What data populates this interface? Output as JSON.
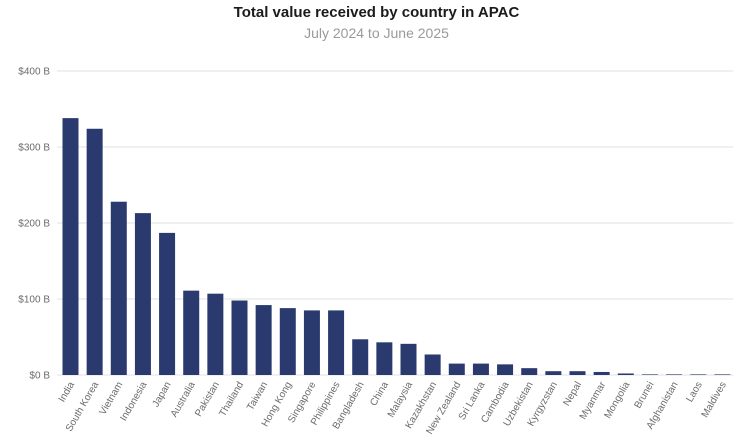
{
  "chart_data": {
    "type": "bar",
    "title": "Total value received by country in APAC",
    "subtitle": "July 2024 to June 2025",
    "xlabel": "",
    "ylabel": "",
    "ylim": [
      0,
      400
    ],
    "yticks": [
      0,
      100,
      200,
      300,
      400
    ],
    "ytick_labels": [
      "$0 B",
      "$100 B",
      "$200 B",
      "$300 B",
      "$400 B"
    ],
    "grid": true,
    "bar_color": "#2b3a6e",
    "grid_color": "#e2e2e2",
    "categories": [
      "India",
      "South Korea",
      "Vietnam",
      "Indonesia",
      "Japan",
      "Australia",
      "Pakistan",
      "Thailand",
      "Taiwan",
      "Hong Kong",
      "Singapore",
      "Philippines",
      "Bangladesh",
      "China",
      "Malaysia",
      "Kazakhstan",
      "New Zealand",
      "Sri Lanka",
      "Cambodia",
      "Uzbekistan",
      "Kyrgyzstan",
      "Nepal",
      "Myanmar",
      "Mongolia",
      "Brunei",
      "Afghanistan",
      "Laos",
      "Maldives"
    ],
    "values": [
      338,
      324,
      228,
      213,
      187,
      111,
      107,
      98,
      92,
      88,
      85,
      85,
      47,
      43,
      41,
      27,
      15,
      15,
      14,
      9,
      5,
      5,
      4,
      2,
      0.3,
      0.2,
      0.1,
      0.1
    ]
  }
}
